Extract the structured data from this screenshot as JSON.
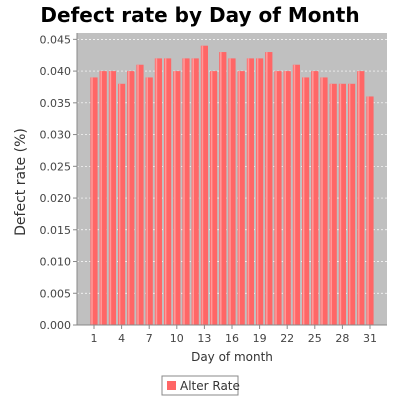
{
  "chart_data": {
    "type": "bar",
    "title": "Defect rate by Day of Month",
    "xlabel": "Day of month",
    "ylabel": "Defect rate (%)",
    "categories": [
      "1",
      "2",
      "3",
      "4",
      "5",
      "6",
      "7",
      "8",
      "9",
      "10",
      "11",
      "12",
      "13",
      "14",
      "15",
      "16",
      "17",
      "18",
      "19",
      "20",
      "21",
      "22",
      "23",
      "24",
      "25",
      "26",
      "27",
      "28",
      "29",
      "30",
      "31"
    ],
    "x_tick_labels": [
      "1",
      "4",
      "7",
      "10",
      "13",
      "16",
      "19",
      "22",
      "25",
      "28",
      "31"
    ],
    "y_tick_labels": [
      "0.000",
      "0.005",
      "0.010",
      "0.015",
      "0.020",
      "0.025",
      "0.030",
      "0.035",
      "0.040",
      "0.045"
    ],
    "ylim": [
      0,
      0.046
    ],
    "series": [
      {
        "name": "Alter Rate",
        "color": "#ff6666",
        "values": [
          0.039,
          0.04,
          0.04,
          0.038,
          0.04,
          0.041,
          0.039,
          0.042,
          0.042,
          0.04,
          0.042,
          0.042,
          0.044,
          0.04,
          0.043,
          0.042,
          0.04,
          0.042,
          0.042,
          0.043,
          0.04,
          0.04,
          0.041,
          0.039,
          0.04,
          0.039,
          0.038,
          0.038,
          0.038,
          0.04,
          0.036
        ]
      }
    ],
    "plot_background": "#c0c0c0",
    "gridlines": true,
    "legend_position": "bottom"
  }
}
